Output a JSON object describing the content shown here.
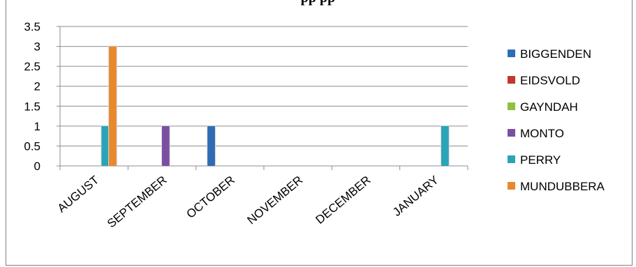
{
  "chart_data": {
    "type": "bar",
    "title": "",
    "title_partial": "pp                    pp",
    "xlabel": "",
    "ylabel": "",
    "ylim": [
      0,
      3.5
    ],
    "yticks": [
      "0",
      "0.5",
      "1",
      "1.5",
      "2",
      "2.5",
      "3",
      "3.5"
    ],
    "grid": true,
    "legend_position": "right",
    "categories": [
      "AUGUST",
      "SEPTEMBER",
      "OCTOBER",
      "NOVEMBER",
      "DECEMBER",
      "JANUARY"
    ],
    "series": [
      {
        "name": "BIGGENDEN",
        "color": "#2e6db4",
        "values": [
          0,
          0,
          1,
          0,
          0,
          0
        ]
      },
      {
        "name": "EIDSVOLD",
        "color": "#c0392b",
        "values": [
          0,
          0,
          0,
          0,
          0,
          0
        ]
      },
      {
        "name": "GAYNDAH",
        "color": "#8fbf3f",
        "values": [
          0,
          0,
          0,
          0,
          0,
          0
        ]
      },
      {
        "name": "MONTO",
        "color": "#7b4fa0",
        "values": [
          0,
          1,
          0,
          0,
          0,
          0
        ]
      },
      {
        "name": "PERRY",
        "color": "#2ba3b8",
        "values": [
          1,
          0,
          0,
          0,
          0,
          1
        ]
      },
      {
        "name": "MUNDUBBERA",
        "color": "#e8892c",
        "values": [
          3,
          0,
          0,
          0,
          0,
          0
        ]
      }
    ]
  }
}
